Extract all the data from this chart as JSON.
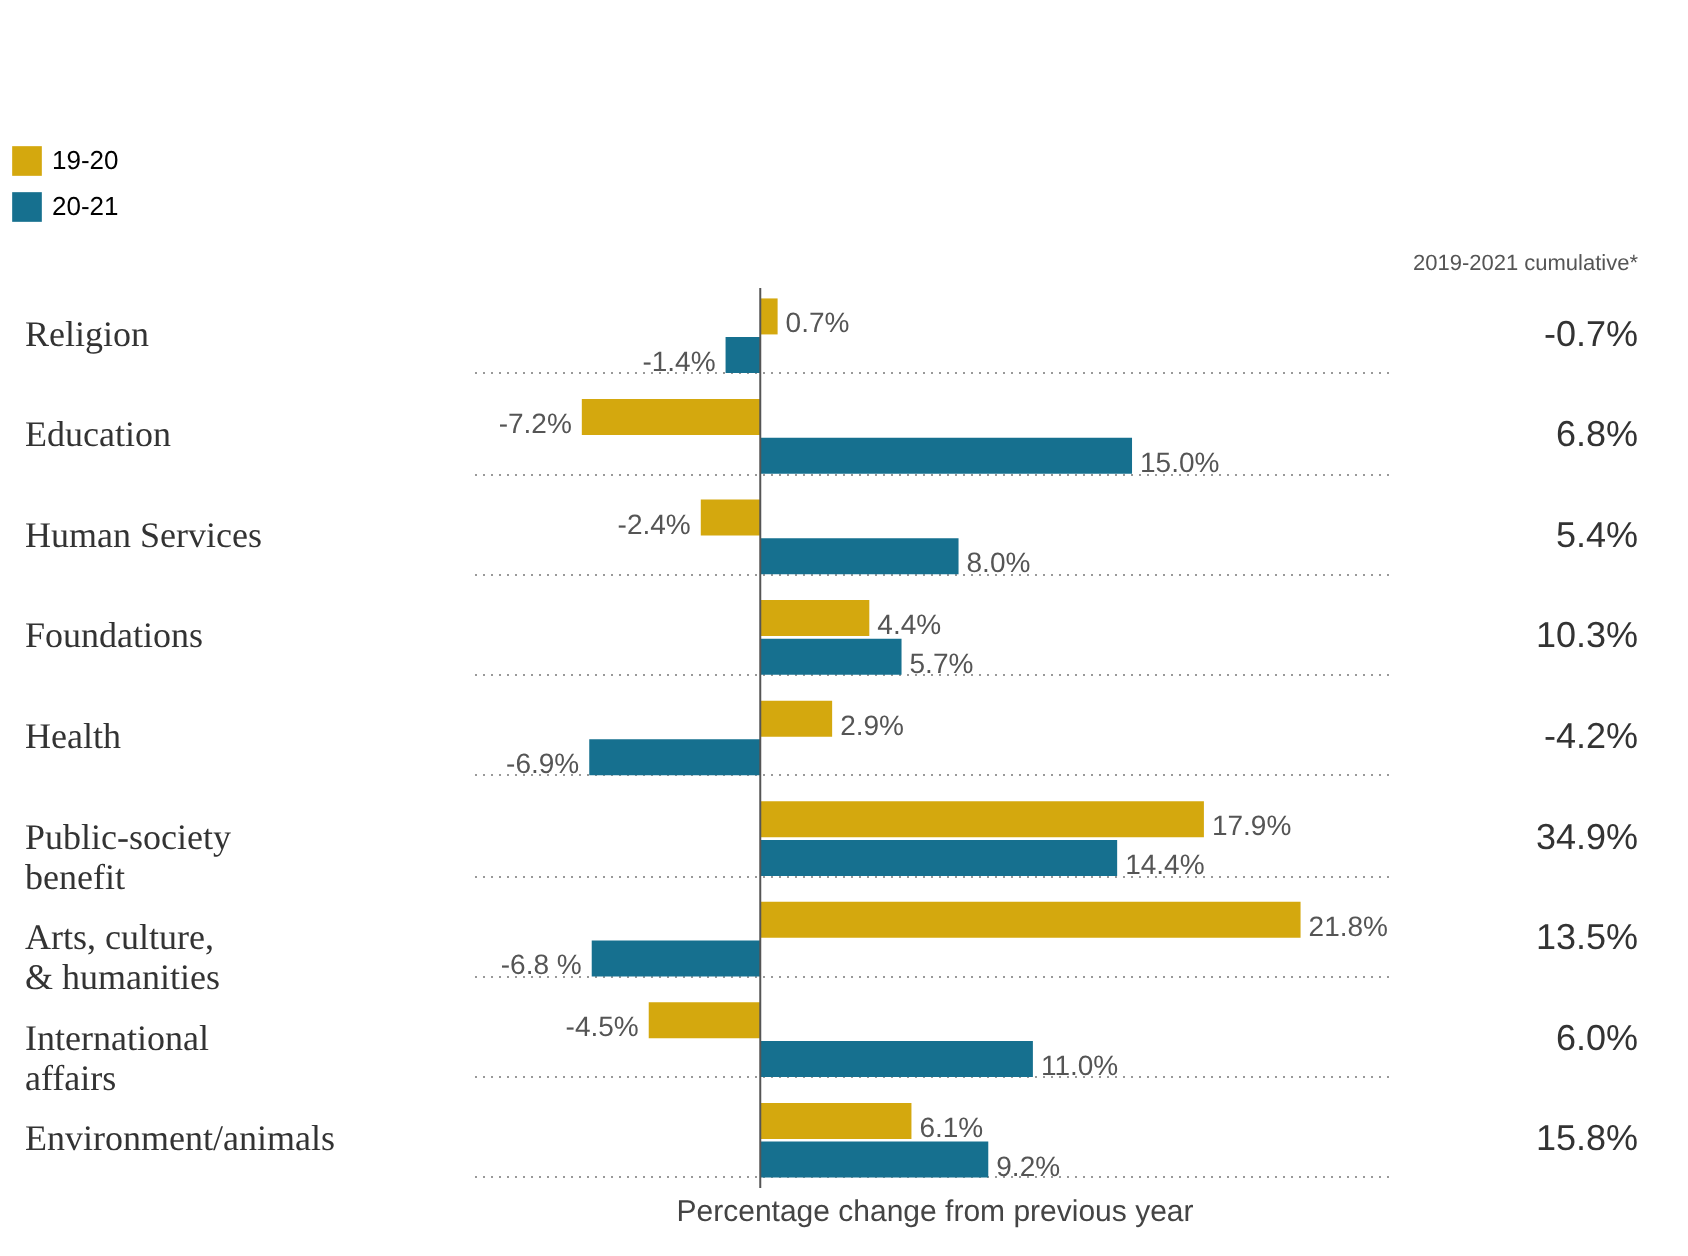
{
  "chart_data": {
    "type": "bar",
    "orientation": "horizontal",
    "xlabel": "Percentage change from previous year",
    "categories": [
      "Religion",
      "Education",
      "Human Services",
      "Foundations",
      "Health",
      "Public-society benefit",
      "Arts, culture, & humanities",
      "International affairs",
      "Environment/animals"
    ],
    "series": [
      {
        "name": "19-20",
        "color": "#d4a80e",
        "values": [
          0.7,
          -7.2,
          -2.4,
          4.4,
          2.9,
          17.9,
          21.8,
          -4.5,
          6.1
        ],
        "value_labels": [
          "0.7%",
          "-7.2%",
          "-2.4%",
          "4.4%",
          "2.9%",
          "17.9%",
          "21.8%",
          "-4.5%",
          "6.1%"
        ]
      },
      {
        "name": "20-21",
        "color": "#16708f",
        "values": [
          -1.4,
          15.0,
          8.0,
          5.7,
          -6.9,
          14.4,
          -6.8,
          11.0,
          9.2
        ],
        "value_labels": [
          "-1.4%",
          "15.0%",
          "8.0%",
          "5.7%",
          "-6.9%",
          "14.4%",
          "-6.8 %",
          "11.0%",
          "9.2%"
        ]
      }
    ],
    "annotations": [
      "2019-2021 cumulative*",
      "-0.7%",
      "6.8%",
      "5.4%",
      "10.3%",
      "-4.2%",
      "34.9%",
      "13.5%",
      "6.0%",
      "15.8%"
    ],
    "legend": "top left",
    "grid": "y",
    "tick_labels": "y"
  }
}
